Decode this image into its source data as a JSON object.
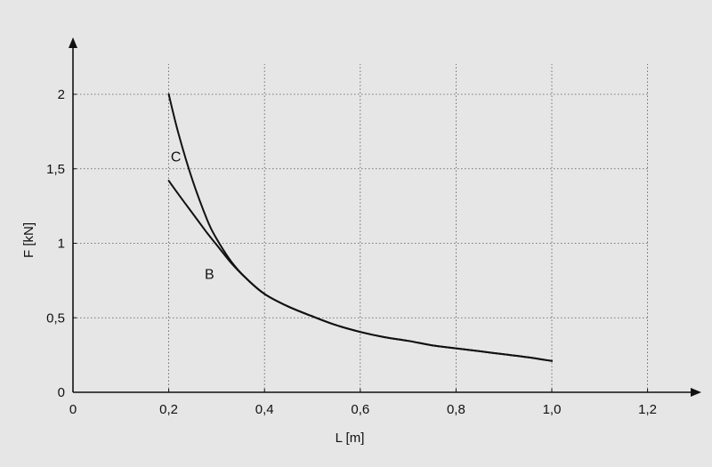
{
  "chart_data": {
    "type": "line",
    "title": "",
    "xlabel": "L [m]",
    "ylabel": "F [kN]",
    "xlim": [
      0,
      1.3
    ],
    "ylim": [
      0,
      2.2
    ],
    "grid": true,
    "x_ticks": [
      {
        "value": 0,
        "label": "0"
      },
      {
        "value": 0.2,
        "label": "0,2"
      },
      {
        "value": 0.4,
        "label": "0,4"
      },
      {
        "value": 0.6,
        "label": "0,6"
      },
      {
        "value": 0.8,
        "label": "0,8"
      },
      {
        "value": 1.0,
        "label": "1,0"
      },
      {
        "value": 1.2,
        "label": "1,2"
      }
    ],
    "y_ticks": [
      {
        "value": 0,
        "label": "0"
      },
      {
        "value": 0.5,
        "label": "0,5"
      },
      {
        "value": 1,
        "label": "1"
      },
      {
        "value": 1.5,
        "label": "1,5"
      },
      {
        "value": 2,
        "label": "2"
      }
    ],
    "series": [
      {
        "name": "C",
        "x": [
          0.2,
          0.22,
          0.25,
          0.28,
          0.3,
          0.33,
          0.36,
          0.4,
          0.45,
          0.5,
          0.55,
          0.6,
          0.65,
          0.7,
          0.75,
          0.8,
          0.85,
          0.9,
          0.95,
          1.0
        ],
        "y": [
          2.0,
          1.74,
          1.42,
          1.16,
          1.03,
          0.88,
          0.77,
          0.66,
          0.575,
          0.51,
          0.45,
          0.405,
          0.37,
          0.345,
          0.315,
          0.295,
          0.275,
          0.255,
          0.235,
          0.21
        ]
      },
      {
        "name": "B",
        "x": [
          0.2,
          0.22,
          0.25,
          0.28,
          0.3,
          0.33,
          0.36,
          0.4,
          0.45,
          0.5,
          0.55,
          0.6,
          0.65,
          0.7,
          0.75,
          0.8,
          0.85,
          0.9,
          0.95,
          1.0
        ],
        "y": [
          1.42,
          1.33,
          1.2,
          1.07,
          0.99,
          0.87,
          0.77,
          0.66,
          0.575,
          0.51,
          0.45,
          0.405,
          0.37,
          0.345,
          0.315,
          0.295,
          0.275,
          0.255,
          0.235,
          0.21
        ]
      }
    ],
    "annotations": [
      {
        "text": "C",
        "x": 0.215,
        "y": 1.55
      },
      {
        "text": "B",
        "x": 0.285,
        "y": 0.76
      }
    ],
    "colors": {
      "background": "#e6e6e6",
      "axis": "#111111",
      "grid": "#555555",
      "curve": "#111111"
    }
  }
}
